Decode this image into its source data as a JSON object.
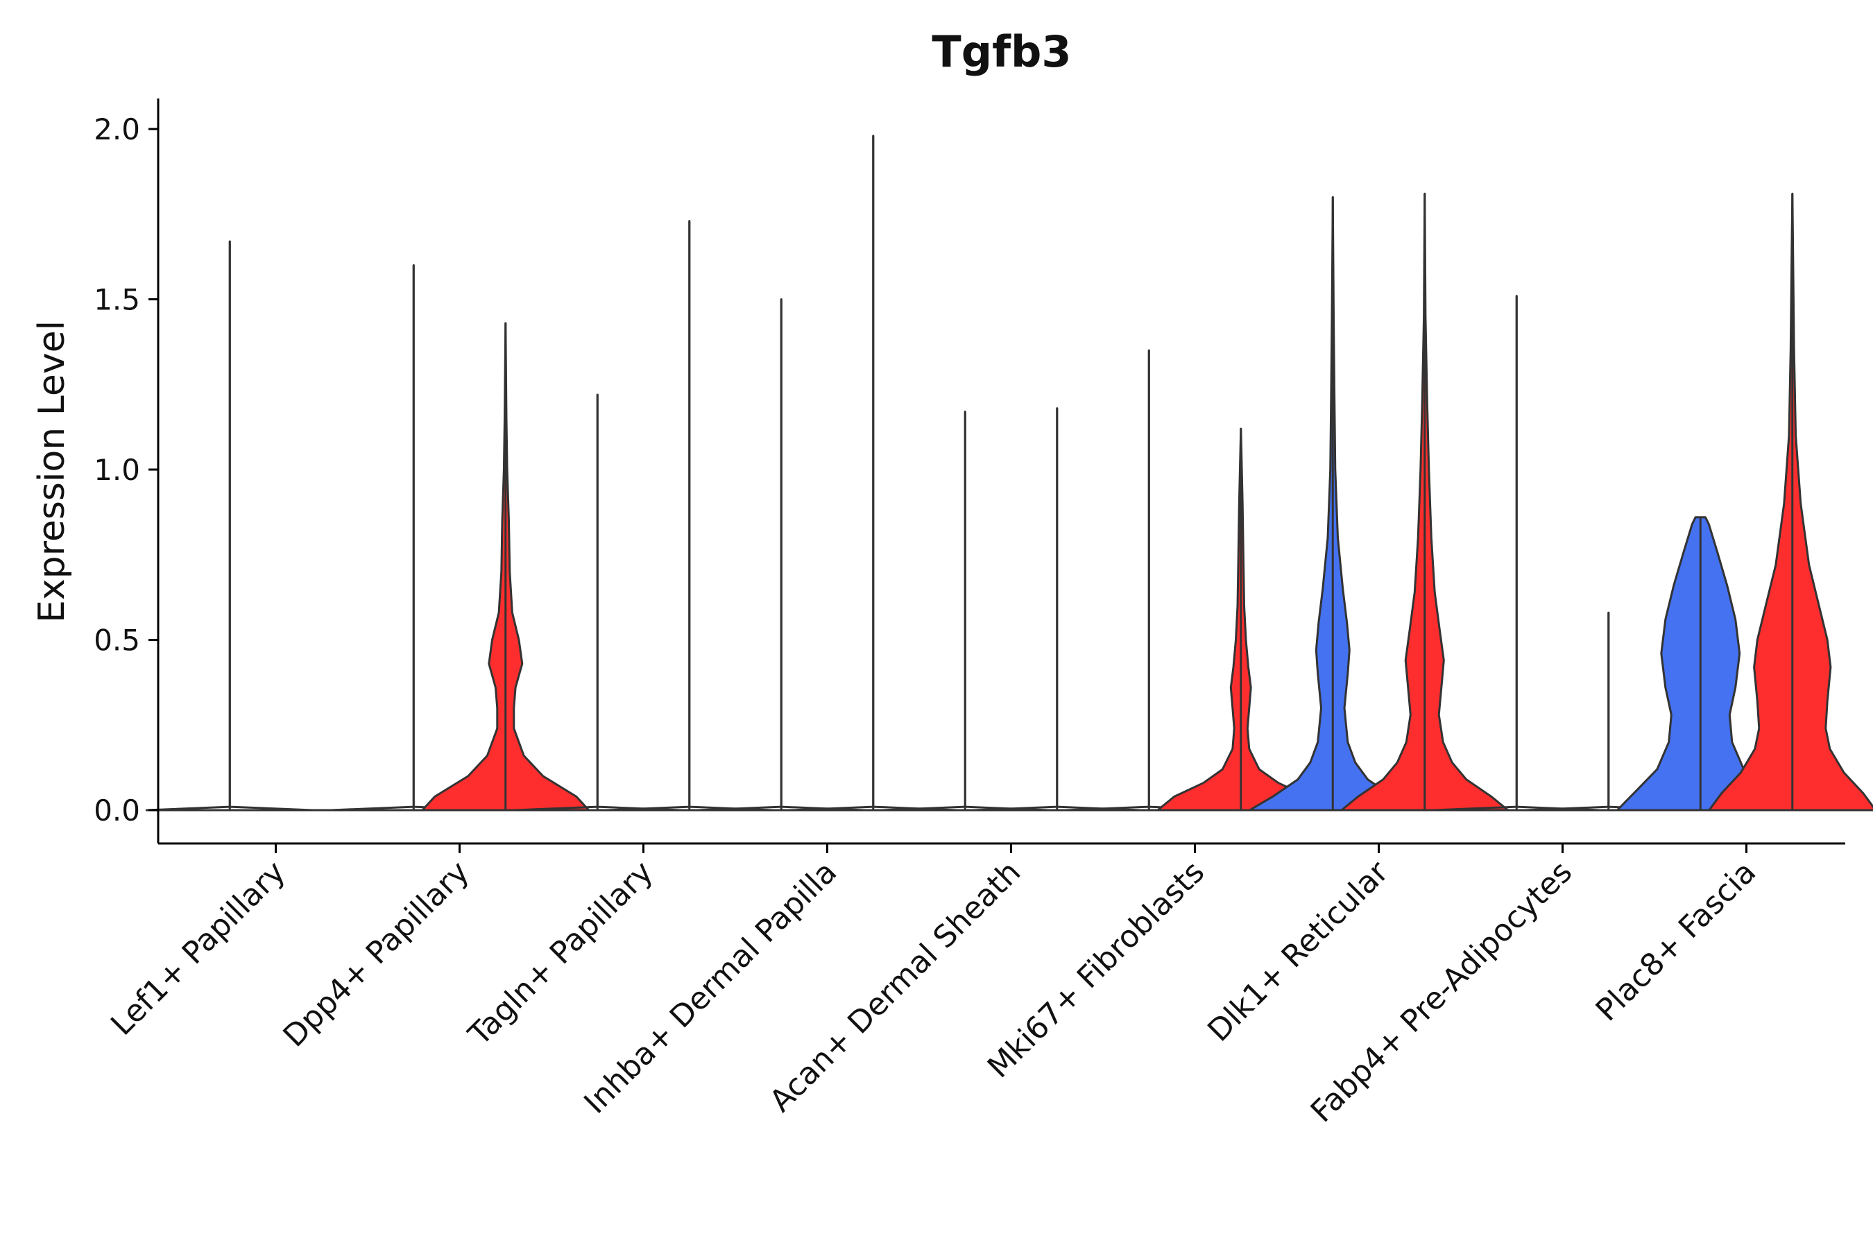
{
  "chart_data": {
    "type": "violin",
    "title": "Tgfb3",
    "xlabel": "",
    "ylabel": "Expression Level",
    "ylim": [
      -0.1,
      2.1
    ],
    "yticks": [
      0.0,
      0.5,
      1.0,
      1.5,
      2.0
    ],
    "ytick_labels": [
      "0.0",
      "0.5",
      "1.0",
      "1.5",
      "2.0"
    ],
    "categories": [
      "Lef1+ Papillary",
      "Dpp4+ Papillary",
      "Tagln+ Papillary",
      "Inhba+ Dermal Papilla",
      "Acan+ Dermal Sheath",
      "Mki67+ Fibroblasts",
      "Dlk1+ Reticular",
      "Fabp4+ Pre-Adipocytes",
      "Plac8+ Fascia"
    ],
    "groups": [
      {
        "name": "group1",
        "color": "#4472f0"
      },
      {
        "name": "group2",
        "color": "#ff2e2e"
      }
    ],
    "outline_color": "#333333",
    "axis_color": "#000000",
    "violins": [
      {
        "category": 0,
        "group": 0,
        "max": 1.67,
        "profile": [
          [
            0,
            1
          ],
          [
            0.01,
            0
          ],
          [
            1.67,
            0
          ]
        ]
      },
      {
        "category": 0,
        "group": 1,
        "max": 0.0,
        "profile": [
          [
            0,
            1
          ]
        ]
      },
      {
        "category": 1,
        "group": 0,
        "max": 1.6,
        "profile": [
          [
            0,
            1
          ],
          [
            0.01,
            0
          ],
          [
            1.6,
            0
          ]
        ]
      },
      {
        "category": 1,
        "group": 1,
        "max": 1.43,
        "profile": [
          [
            0,
            1
          ],
          [
            0.04,
            0.85
          ],
          [
            0.1,
            0.45
          ],
          [
            0.16,
            0.22
          ],
          [
            0.24,
            0.1
          ],
          [
            0.3,
            0.1
          ],
          [
            0.36,
            0.12
          ],
          [
            0.43,
            0.2
          ],
          [
            0.5,
            0.16
          ],
          [
            0.58,
            0.08
          ],
          [
            0.7,
            0.05
          ],
          [
            0.85,
            0.04
          ],
          [
            1.0,
            0.02
          ],
          [
            1.15,
            0.01
          ],
          [
            1.43,
            0
          ]
        ]
      },
      {
        "category": 2,
        "group": 0,
        "max": 1.22,
        "profile": [
          [
            0,
            1
          ],
          [
            0.01,
            0
          ],
          [
            1.22,
            0
          ]
        ]
      },
      {
        "category": 2,
        "group": 1,
        "max": 1.73,
        "profile": [
          [
            0,
            1
          ],
          [
            0.01,
            0
          ],
          [
            1.73,
            0
          ]
        ]
      },
      {
        "category": 3,
        "group": 0,
        "max": 1.5,
        "profile": [
          [
            0,
            1
          ],
          [
            0.01,
            0
          ],
          [
            1.5,
            0
          ]
        ]
      },
      {
        "category": 3,
        "group": 1,
        "max": 1.98,
        "profile": [
          [
            0,
            1
          ],
          [
            0.01,
            0
          ],
          [
            1.98,
            0
          ]
        ]
      },
      {
        "category": 4,
        "group": 0,
        "max": 1.17,
        "profile": [
          [
            0,
            1
          ],
          [
            0.01,
            0
          ],
          [
            1.17,
            0
          ]
        ]
      },
      {
        "category": 4,
        "group": 1,
        "max": 1.18,
        "profile": [
          [
            0,
            1
          ],
          [
            0.01,
            0
          ],
          [
            1.18,
            0
          ]
        ]
      },
      {
        "category": 5,
        "group": 0,
        "max": 1.35,
        "profile": [
          [
            0,
            1
          ],
          [
            0.01,
            0
          ],
          [
            1.35,
            0
          ]
        ]
      },
      {
        "category": 5,
        "group": 1,
        "max": 1.12,
        "profile": [
          [
            0,
            1
          ],
          [
            0.04,
            0.8
          ],
          [
            0.08,
            0.45
          ],
          [
            0.12,
            0.22
          ],
          [
            0.18,
            0.1
          ],
          [
            0.24,
            0.08
          ],
          [
            0.3,
            0.1
          ],
          [
            0.36,
            0.12
          ],
          [
            0.42,
            0.09
          ],
          [
            0.5,
            0.06
          ],
          [
            0.6,
            0.04
          ],
          [
            0.75,
            0.03
          ],
          [
            0.9,
            0.02
          ],
          [
            1.12,
            0
          ]
        ]
      },
      {
        "category": 6,
        "group": 0,
        "max": 1.8,
        "profile": [
          [
            0,
            1
          ],
          [
            0.04,
            0.72
          ],
          [
            0.09,
            0.42
          ],
          [
            0.14,
            0.27
          ],
          [
            0.2,
            0.18
          ],
          [
            0.3,
            0.14
          ],
          [
            0.4,
            0.18
          ],
          [
            0.47,
            0.2
          ],
          [
            0.55,
            0.17
          ],
          [
            0.65,
            0.12
          ],
          [
            0.8,
            0.06
          ],
          [
            1.0,
            0.03
          ],
          [
            1.2,
            0.02
          ],
          [
            1.45,
            0.01
          ],
          [
            1.8,
            0
          ]
        ]
      },
      {
        "category": 6,
        "group": 1,
        "max": 1.81,
        "profile": [
          [
            0,
            1
          ],
          [
            0.04,
            0.8
          ],
          [
            0.09,
            0.5
          ],
          [
            0.14,
            0.33
          ],
          [
            0.2,
            0.22
          ],
          [
            0.28,
            0.17
          ],
          [
            0.36,
            0.2
          ],
          [
            0.44,
            0.23
          ],
          [
            0.53,
            0.18
          ],
          [
            0.64,
            0.12
          ],
          [
            0.8,
            0.08
          ],
          [
            1.0,
            0.05
          ],
          [
            1.2,
            0.03
          ],
          [
            1.45,
            0.01
          ],
          [
            1.81,
            0
          ]
        ]
      },
      {
        "category": 7,
        "group": 0,
        "max": 1.51,
        "profile": [
          [
            0,
            1
          ],
          [
            0.01,
            0
          ],
          [
            1.51,
            0
          ]
        ]
      },
      {
        "category": 7,
        "group": 1,
        "max": 0.58,
        "profile": [
          [
            0,
            1
          ],
          [
            0.01,
            0
          ],
          [
            0.58,
            0
          ]
        ]
      },
      {
        "category": 8,
        "group": 0,
        "max": 0.86,
        "profile": [
          [
            0,
            1
          ],
          [
            0.05,
            0.8
          ],
          [
            0.12,
            0.52
          ],
          [
            0.2,
            0.38
          ],
          [
            0.28,
            0.35
          ],
          [
            0.36,
            0.42
          ],
          [
            0.46,
            0.47
          ],
          [
            0.56,
            0.42
          ],
          [
            0.66,
            0.32
          ],
          [
            0.76,
            0.2
          ],
          [
            0.84,
            0.1
          ],
          [
            0.86,
            0.06
          ]
        ]
      },
      {
        "category": 8,
        "group": 1,
        "max": 1.81,
        "profile": [
          [
            0,
            1
          ],
          [
            0.05,
            0.85
          ],
          [
            0.11,
            0.62
          ],
          [
            0.18,
            0.45
          ],
          [
            0.24,
            0.4
          ],
          [
            0.32,
            0.42
          ],
          [
            0.42,
            0.46
          ],
          [
            0.5,
            0.42
          ],
          [
            0.6,
            0.32
          ],
          [
            0.72,
            0.2
          ],
          [
            0.9,
            0.1
          ],
          [
            1.1,
            0.04
          ],
          [
            1.35,
            0.02
          ],
          [
            1.6,
            0.01
          ],
          [
            1.81,
            0
          ]
        ]
      }
    ]
  }
}
